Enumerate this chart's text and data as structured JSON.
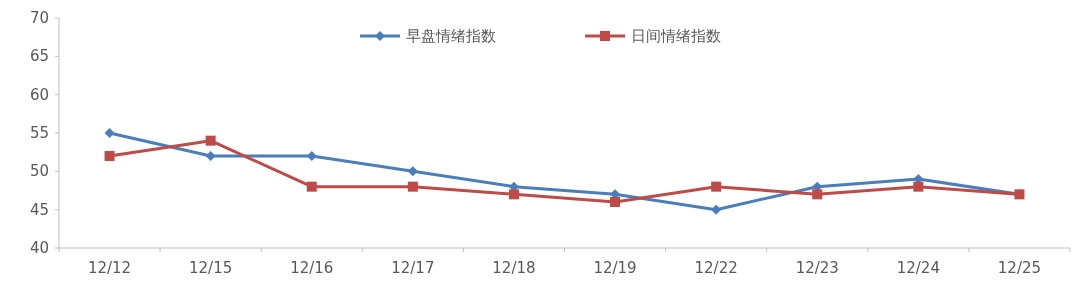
{
  "chart_data": {
    "type": "line",
    "categories": [
      "12/12",
      "12/15",
      "12/16",
      "12/17",
      "12/18",
      "12/19",
      "12/22",
      "12/23",
      "12/24",
      "12/25"
    ],
    "series": [
      {
        "name": "早盘情绪指数",
        "color": "#4a7ebb",
        "marker": "diamond",
        "values": [
          55,
          52,
          52,
          50,
          48,
          47,
          45,
          48,
          49,
          47
        ]
      },
      {
        "name": "日间情绪指数",
        "color": "#be4b48",
        "marker": "square",
        "values": [
          52,
          54,
          48,
          48,
          47,
          46,
          48,
          47,
          48,
          47
        ]
      }
    ],
    "ylim": [
      40,
      70
    ],
    "yticks": [
      40,
      45,
      50,
      55,
      60,
      65,
      70
    ],
    "grid": false,
    "legend": "top",
    "line_style": "solid"
  }
}
